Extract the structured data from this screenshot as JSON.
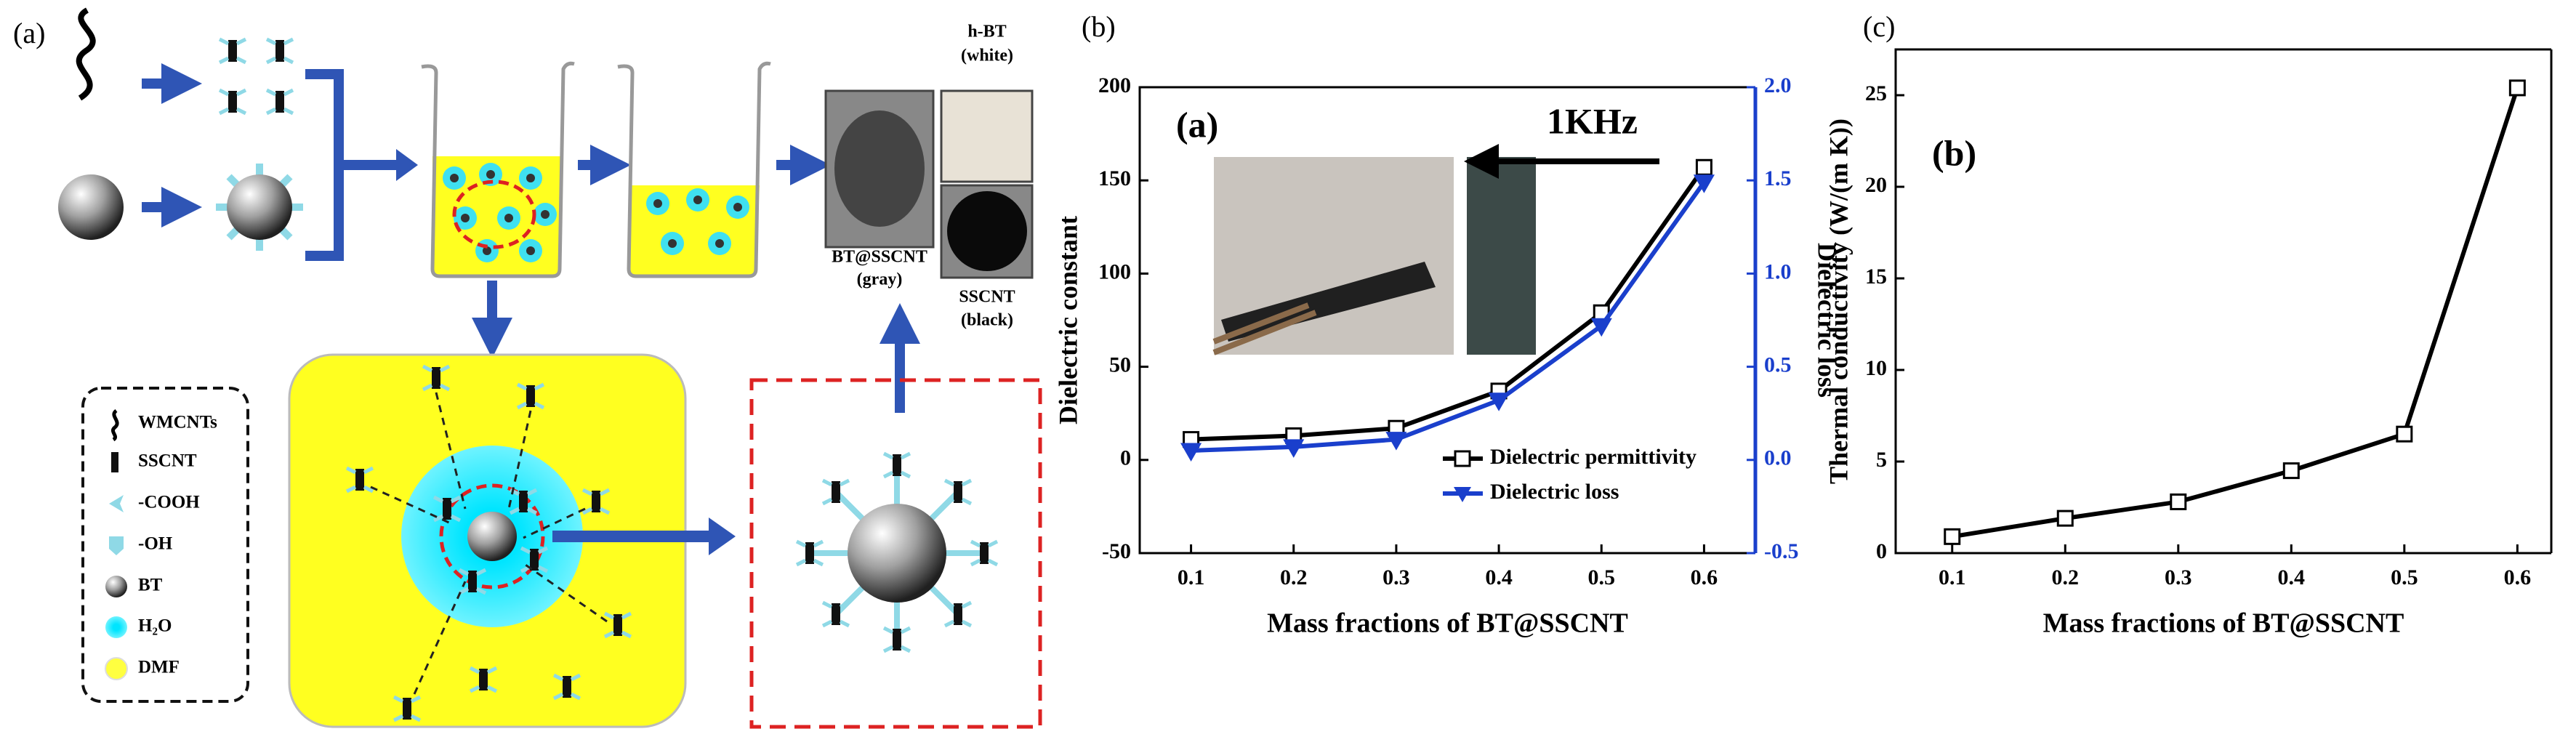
{
  "panel_labels": [
    "(a)",
    "(b)",
    "(c)"
  ],
  "diagram": {
    "photo_labels": [
      [
        "h-BT",
        "(white)"
      ],
      [
        "BT@SSCNT",
        "(gray)"
      ],
      [
        "SSCNT",
        "(black)"
      ]
    ],
    "legend": [
      "WMCNTs",
      "SSCNT",
      "-COOH",
      "-OH",
      "BT",
      "H₂O",
      "DMF"
    ]
  },
  "chart_data": [
    {
      "type": "line",
      "panel_text": "(a)",
      "annotation": "1KHz",
      "x": [
        0.1,
        0.2,
        0.3,
        0.4,
        0.5,
        0.6
      ],
      "xlim": [
        0.05,
        0.65
      ],
      "xticks": [
        0.1,
        0.2,
        0.3,
        0.4,
        0.5,
        0.6
      ],
      "xlabel": "Mass fractions of BT@SSCNT",
      "ylabel": "Dielectric constant",
      "y2label": "Dielectric loss",
      "ylim": [
        -50,
        200
      ],
      "yticks": [
        -50,
        0,
        50,
        100,
        150,
        200
      ],
      "y2lim": [
        -0.5,
        2.0
      ],
      "y2ticks": [
        -0.5,
        {
          "value": 0,
          "label": "0.0"
        },
        0.5,
        {
          "value": 1,
          "label": "1.0"
        },
        1.5,
        {
          "value": 2,
          "label": "2.0"
        }
      ],
      "y2color": "#1a3fcc",
      "legend": "lower right",
      "series": [
        {
          "name": "Dielectric permittivity",
          "color": "#000000",
          "marker": "square",
          "values": [
            11,
            13,
            17,
            37,
            79,
            157
          ]
        },
        {
          "name": "Dielectric loss",
          "color": "#1a3fcc",
          "marker": "triangle-down",
          "axis": "y2",
          "values": [
            0.05,
            0.07,
            0.11,
            0.32,
            0.72,
            1.49
          ]
        }
      ]
    },
    {
      "type": "line",
      "panel_text": "(b)",
      "x": [
        0.1,
        0.2,
        0.3,
        0.4,
        0.5,
        0.6
      ],
      "xlim": [
        0.05,
        0.63
      ],
      "xticks": [
        0.1,
        0.2,
        0.3,
        0.4,
        0.5,
        0.6
      ],
      "xlabel": "Mass fractions of BT@SSCNT",
      "ylabel": "Thermal conductivity (W/(m K))",
      "ylim": [
        0,
        27.5
      ],
      "yticks": [
        0,
        5,
        10,
        15,
        20,
        25
      ],
      "series": [
        {
          "color": "#000000",
          "marker": "square",
          "values": [
            0.9,
            1.9,
            2.8,
            4.5,
            6.5,
            25.4
          ]
        }
      ]
    }
  ]
}
